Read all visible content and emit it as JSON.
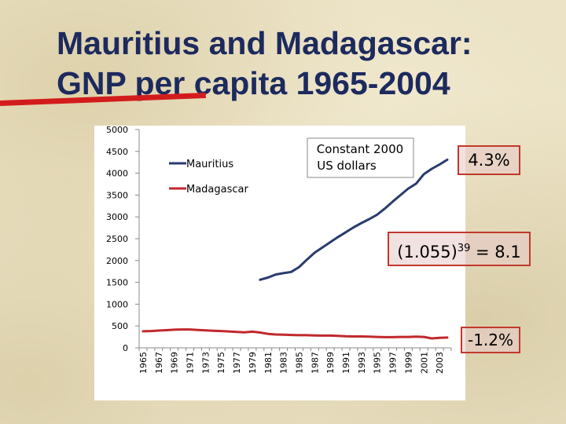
{
  "title": {
    "line1": "Mauritius and Madagascar:",
    "line2": "GNP per capita 1965-2004"
  },
  "annotations": {
    "units": "Constant 2000 US dollars",
    "mauritius_growth": "4.3%",
    "formula_base": "(1.055)",
    "formula_exp": "39",
    "formula_result": " = 8.1",
    "madagascar_growth": "-1.2%"
  },
  "colors": {
    "mauritius": "#2a3b6e",
    "madagascar": "#c0282d",
    "title": "#1c2a5e",
    "callout_border": "#c0392b"
  },
  "chart_data": {
    "type": "line",
    "title": "",
    "xlabel": "",
    "ylabel": "",
    "ylim": [
      0,
      5000
    ],
    "yticks": [
      0,
      500,
      1000,
      1500,
      2000,
      2500,
      3000,
      3500,
      4000,
      4500,
      5000
    ],
    "xlim": [
      1965,
      2004
    ],
    "xticks": [
      1965,
      1967,
      1969,
      1971,
      1973,
      1975,
      1977,
      1979,
      1981,
      1983,
      1985,
      1987,
      1989,
      1991,
      1993,
      1995,
      1997,
      1999,
      2001,
      2003
    ],
    "legend_position": "top-left",
    "grid": false,
    "series": [
      {
        "name": "Mauritius",
        "color": "#2a3b6e",
        "x": [
          1980,
          1981,
          1982,
          1983,
          1984,
          1985,
          1986,
          1987,
          1988,
          1989,
          1990,
          1991,
          1992,
          1993,
          1994,
          1995,
          1996,
          1997,
          1998,
          1999,
          2000,
          2001,
          2002,
          2003,
          2004
        ],
        "y": [
          1560,
          1610,
          1680,
          1710,
          1740,
          1850,
          2020,
          2180,
          2300,
          2420,
          2540,
          2650,
          2760,
          2860,
          2950,
          3050,
          3190,
          3350,
          3500,
          3650,
          3760,
          3980,
          4100,
          4200,
          4310
        ]
      },
      {
        "name": "Madagascar",
        "color": "#c0282d",
        "x": [
          1965,
          1966,
          1967,
          1968,
          1969,
          1970,
          1971,
          1972,
          1973,
          1974,
          1975,
          1976,
          1977,
          1978,
          1979,
          1980,
          1981,
          1982,
          1983,
          1984,
          1985,
          1986,
          1987,
          1988,
          1989,
          1990,
          1991,
          1992,
          1993,
          1994,
          1995,
          1996,
          1997,
          1998,
          1999,
          2000,
          2001,
          2002,
          2003,
          2004
        ],
        "y": [
          380,
          385,
          395,
          405,
          415,
          420,
          420,
          410,
          400,
          390,
          385,
          375,
          365,
          355,
          370,
          350,
          320,
          305,
          300,
          295,
          290,
          290,
          285,
          280,
          280,
          275,
          265,
          260,
          260,
          255,
          250,
          245,
          245,
          250,
          250,
          255,
          250,
          215,
          230,
          235
        ]
      }
    ]
  }
}
